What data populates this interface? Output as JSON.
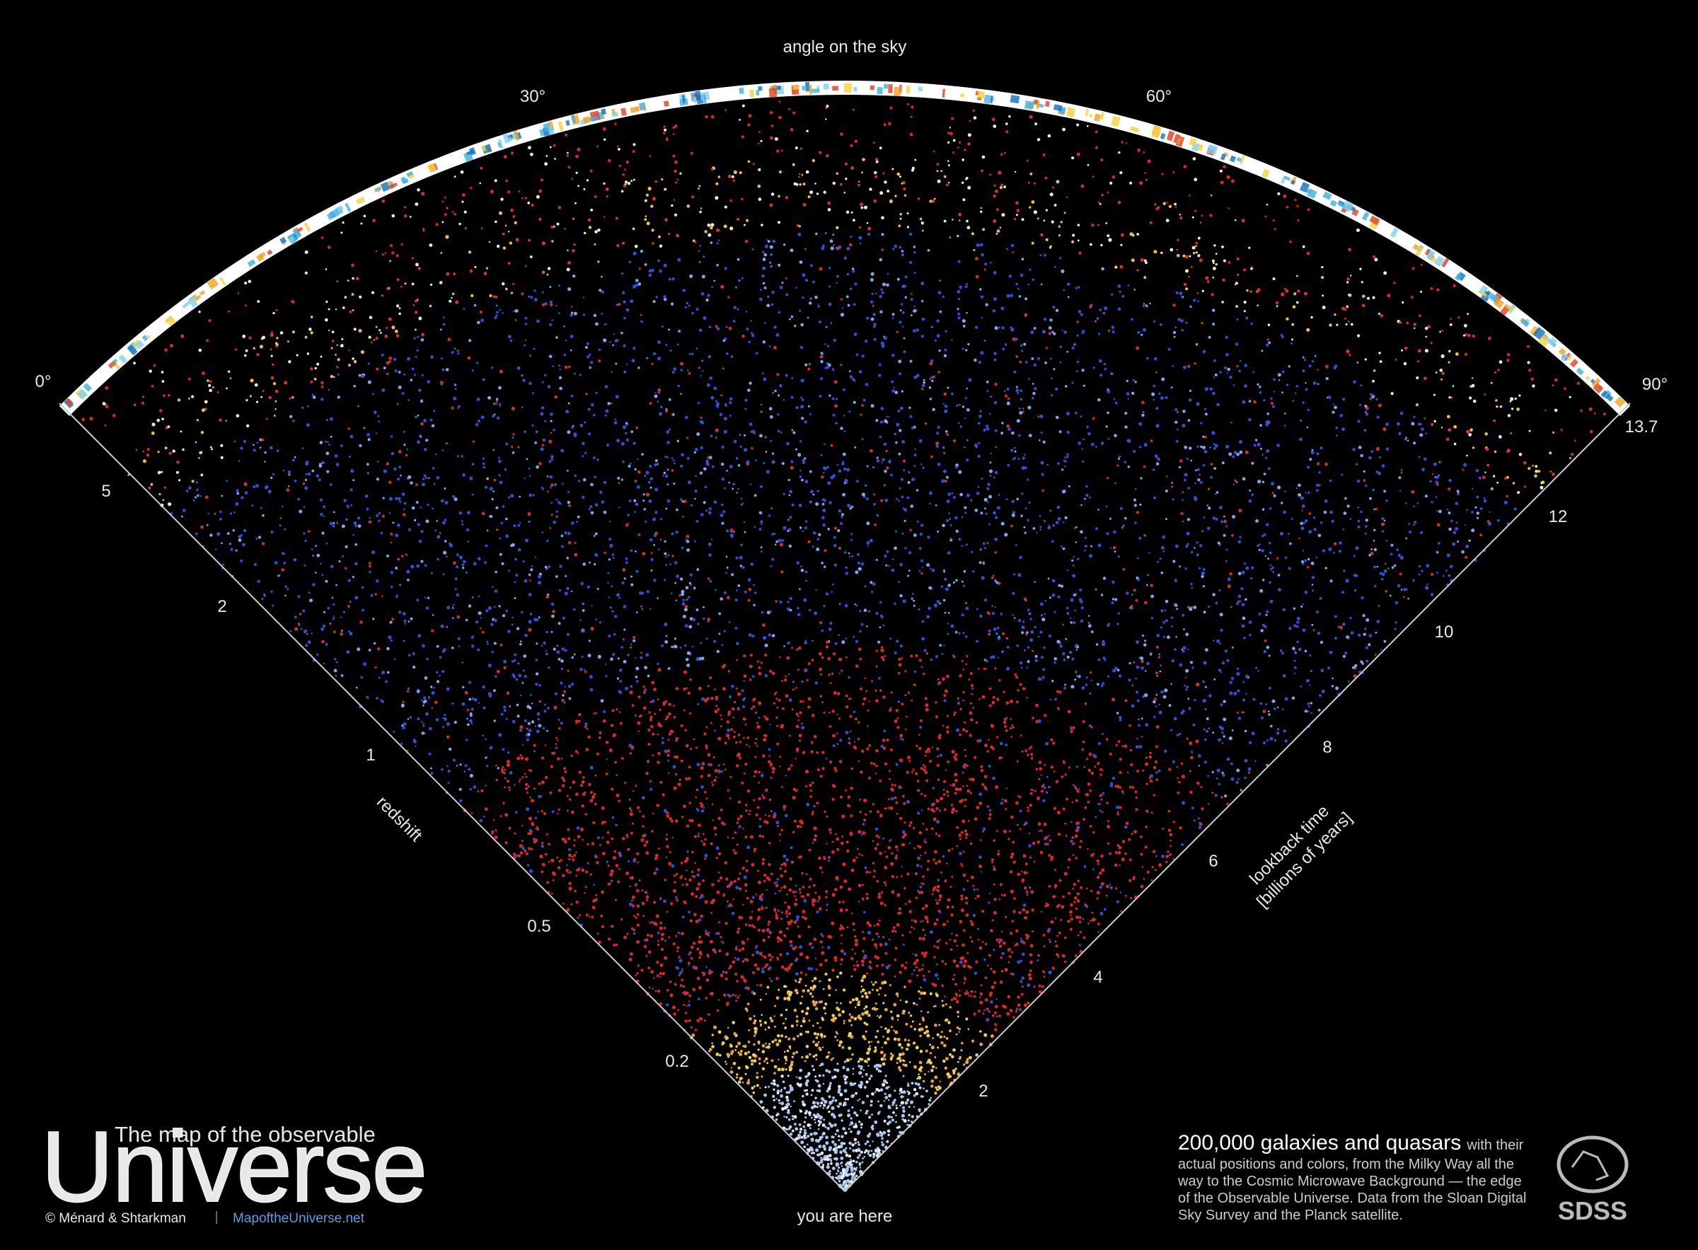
{
  "angle_axis": {
    "label": "angle on the sky",
    "ticks": [
      "0°",
      "30°",
      "60°",
      "90°"
    ]
  },
  "redshift_axis": {
    "label": "redshift",
    "ticks": [
      "5",
      "2",
      "1",
      "0.5",
      "0.2"
    ]
  },
  "lookback_axis": {
    "label_lines": [
      "lookback time",
      "[billions of years]"
    ],
    "ticks": [
      "2",
      "4",
      "6",
      "8",
      "10",
      "12",
      "13.7"
    ]
  },
  "origin_label": "you are here",
  "title": {
    "line1": "The map of the observable",
    "line2": "Universe"
  },
  "credit": "© Ménard & Shtarkman",
  "url": "MapoftheUniverse.net",
  "description": {
    "headline": "200,000 galaxies and quasars",
    "lines": [
      "with their",
      "actual positions and colors, from the Milky Way all the",
      "way to the Cosmic Microwave Background — the edge",
      "of the Observable Universe. Data from the Sloan Digital",
      "Sky Survey and the Planck satellite."
    ]
  },
  "logo": "SDSS"
}
